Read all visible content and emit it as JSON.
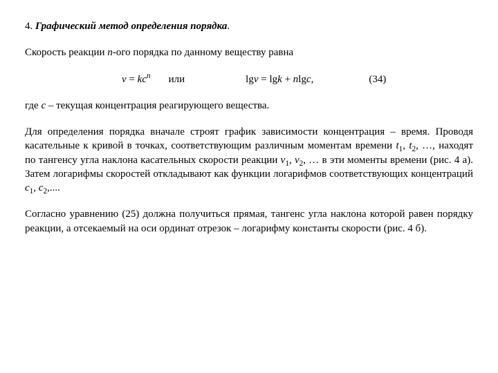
{
  "title": {
    "num": "4. ",
    "text": "Графический метод определения порядка",
    "dot": "."
  },
  "p1": {
    "a": "Скорость реакции ",
    "n": "n",
    "b": "-ого порядка по данному веществу равна"
  },
  "eq": {
    "v": "v",
    "eq1a": " = ",
    "k": "k",
    "c1": "c",
    "n": "n",
    "or": "или",
    "lg1": "lg",
    "v2": "v",
    "mid": " = lg",
    "k2": "k",
    "plus": " + ",
    "n2": "n",
    "lg2": "lg",
    "c2": "c",
    "comma": ",",
    "num": "(34)"
  },
  "p2": {
    "a": "где ",
    "c": "c",
    "b": " – текущая концентрация реагирующего вещества."
  },
  "p3": {
    "a": "Для определения порядка вначале строят график зависимости концентрация – время. Проводя касательные к кривой в точках, соответствующим различным моментам времени ",
    "t1": "t",
    "s1": "1",
    "b": ", ",
    "t2": "t",
    "s2": "2",
    "c": ", …, находят по тангенсу угла наклона касательных скорости реакции ",
    "v1": "v",
    "vs1": "1",
    "d": ", ",
    "v2": "v",
    "vs2": "2",
    "e": ", … в эти моменты времени (рис. 4 а). Затем логарифмы скоростей откладывают как функции логарифмов соответствующих концентраций ",
    "c1": "c",
    "cs1": "1",
    "f": ", ",
    "c2": "c",
    "cs2": "2",
    "g": ",...."
  },
  "p4": {
    "a": "Согласно уравнению (25) должна получиться прямая, тангенс угла наклона которой равен порядку реакции, а отсекаемый на оси ординат отрезок – логарифму константы скорости (рис. 4 б)."
  }
}
